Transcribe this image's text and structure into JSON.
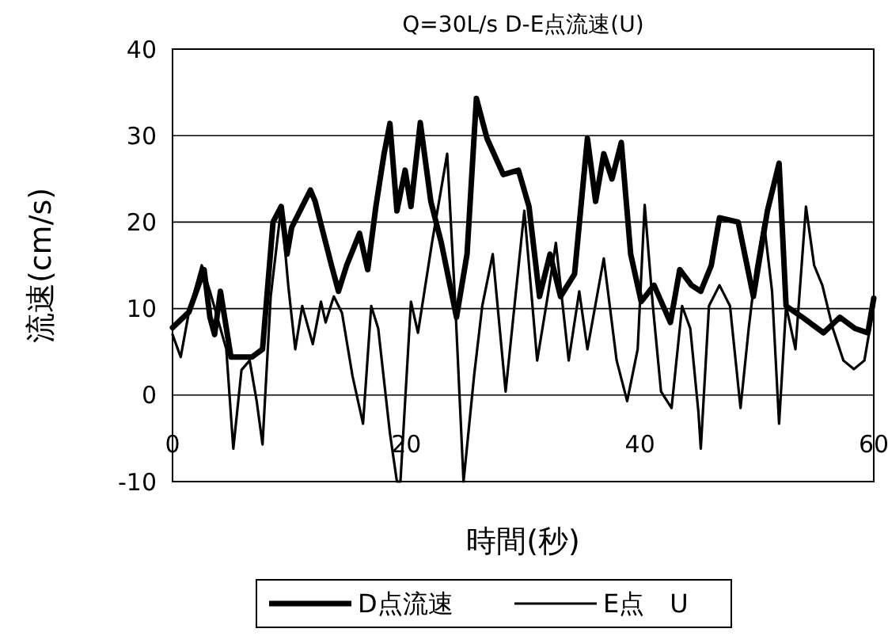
{
  "chart_data": {
    "type": "line",
    "title": "Q=30L/s D-E点流速(U)",
    "xlabel": "時間(秒)",
    "ylabel": "流速(cm/s)",
    "xlim": [
      0,
      60
    ],
    "xticks": [
      0,
      20,
      40,
      60
    ],
    "ylim": [
      -10,
      40
    ],
    "yticks": [
      -10,
      0,
      10,
      20,
      30,
      40
    ],
    "grid": "y",
    "legend": "bottom",
    "marker": "none",
    "line_style": "solid",
    "series": [
      {
        "name": "D点流速",
        "color": "#000000",
        "x": [
          0,
          1.4,
          2.7,
          3.2,
          3.6,
          4.1,
          5,
          6.8,
          7.7,
          8.6,
          9.3,
          9.8,
          10.2,
          11.8,
          12.2,
          13.6,
          14.2,
          14.9,
          16,
          16.7,
          17.4,
          18.1,
          18.6,
          19.2,
          19.9,
          20.4,
          21.2,
          22.1,
          23,
          24.3,
          25.2,
          26,
          26.9,
          28.3,
          29.6,
          30.5,
          31.4,
          32.3,
          33.2,
          34.4,
          35.5,
          36.2,
          36.9,
          37.6,
          38.4,
          39.2,
          40.1,
          41.2,
          42.6,
          43.4,
          44.4,
          45.2,
          46.1,
          46.8,
          48.4,
          49.7,
          50.9,
          51.9,
          52.5,
          53.9,
          55.7,
          57.1,
          58.4,
          59.5,
          60
        ],
        "values": [
          7.8,
          9.6,
          14.5,
          9,
          7,
          12,
          4.4,
          4.4,
          5.3,
          20,
          21.8,
          16.3,
          19.4,
          23.7,
          22.4,
          15,
          12,
          15,
          18.7,
          14.5,
          21.8,
          27.9,
          31.4,
          21.3,
          26,
          21.8,
          31.5,
          22.4,
          17.6,
          9,
          16.3,
          34.3,
          29.7,
          25.5,
          26,
          21.8,
          11.4,
          16.3,
          11.4,
          14,
          29.7,
          22.4,
          27.9,
          25,
          29.2,
          16.3,
          10.8,
          12.7,
          8.4,
          14.5,
          12.7,
          12,
          15,
          20.5,
          20,
          11.4,
          21.3,
          26.8,
          10.3,
          9,
          7.2,
          9,
          7.7,
          7.2,
          11.2
        ]
      },
      {
        "name": "E点　U",
        "color": "#000000",
        "x": [
          0,
          0.7,
          1.4,
          2.5,
          3.2,
          4.6,
          5.2,
          5.9,
          6.6,
          7.2,
          7.7,
          8.4,
          9.3,
          9.9,
          10.5,
          11.1,
          12,
          12.7,
          13.1,
          13.8,
          14.5,
          15.4,
          16.3,
          17,
          17.6,
          18.6,
          19.2,
          19.5,
          20.4,
          21,
          22.2,
          23.5,
          24.2,
          24.9,
          25.8,
          26.5,
          27.4,
          28.5,
          30.1,
          31.2,
          32.1,
          32.8,
          33.9,
          34.8,
          35.5,
          36.9,
          38,
          38.9,
          39.8,
          40.4,
          41.1,
          41.8,
          42.7,
          43.6,
          44.3,
          45,
          45.2,
          45.9,
          46.8,
          47.7,
          48.6,
          49.3,
          49.9,
          50.6,
          51.3,
          51.9,
          52.5,
          53.3,
          54.2,
          54.9,
          55.6,
          56.5,
          57.4,
          58.3,
          59.2,
          60
        ],
        "values": [
          7,
          4.4,
          9.6,
          15,
          12,
          5.3,
          -6.2,
          2.9,
          4,
          -0.7,
          -5.7,
          11.4,
          21.8,
          12.7,
          5.3,
          10.3,
          5.9,
          10.8,
          8.4,
          11.4,
          9.5,
          2.2,
          -3.3,
          10.3,
          7.7,
          -4.4,
          -10,
          -10,
          10.8,
          7.2,
          17.6,
          27.9,
          10.3,
          -10,
          2.2,
          10.3,
          16.3,
          0.4,
          21.3,
          4,
          11.4,
          17.6,
          4,
          12,
          5.3,
          15.8,
          4,
          -0.7,
          5.3,
          22,
          10.3,
          0.4,
          -1.5,
          10.3,
          7.7,
          -2,
          -6.2,
          10.3,
          12.7,
          10.3,
          -1.5,
          7.7,
          14.5,
          20,
          12,
          -3.3,
          10.3,
          5.3,
          21.8,
          15,
          12.7,
          7.7,
          4,
          3,
          4,
          10.3
        ]
      }
    ]
  }
}
